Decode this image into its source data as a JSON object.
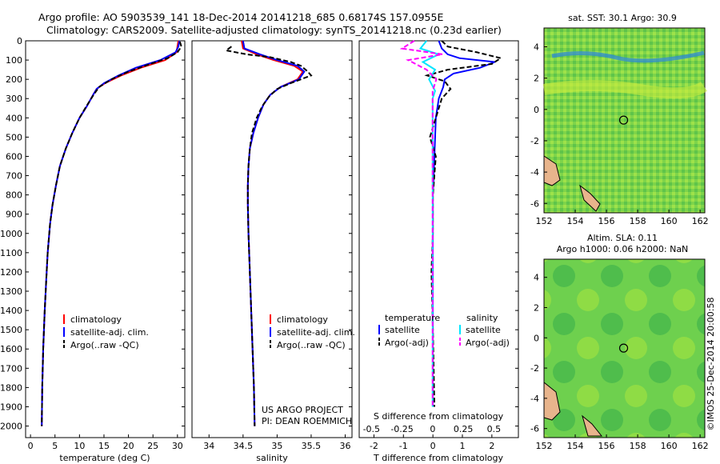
{
  "header": {
    "line1": "Argo profile: AO 5903539_141 18-Dec-2014 20141218_685 0.68174S 157.0955E",
    "line2": "Climatology: CARS2009. Satellite-adjusted climatology: synTS_20141218.nc (0.23d earlier)"
  },
  "colors": {
    "clim": "#ff0000",
    "sat": "#0000ff",
    "argo": "#000000",
    "sal_sat": "#00e5ff",
    "sal_argo": "#ff00ff"
  },
  "depth_axis": {
    "ticks": [
      0,
      100,
      200,
      300,
      400,
      500,
      600,
      700,
      800,
      900,
      1000,
      1100,
      1200,
      1300,
      1400,
      1500,
      1600,
      1700,
      1800,
      1900,
      2000
    ],
    "ylim": [
      0,
      2060
    ]
  },
  "credits": {
    "project": "US ARGO PROJECT",
    "pi": "PI: DEAN ROEMMICH",
    "imos": "©IMOS 25-Dec-2014 20:00:58"
  },
  "chart_data": [
    {
      "type": "line",
      "id": "temp",
      "xlabel": "temperature (deg C)",
      "xlim": [
        -1,
        31.5
      ],
      "ylim": [
        0,
        2060
      ],
      "xticks": [
        0,
        5,
        10,
        15,
        20,
        25,
        30
      ],
      "legend": [
        "climatology",
        "satellite-adj. clim.",
        "Argo(..raw -QC)"
      ],
      "series": [
        {
          "name": "climatology",
          "color_key": "clim",
          "dash": "",
          "points": [
            [
              30.2,
              0
            ],
            [
              30.0,
              30
            ],
            [
              29.8,
              60
            ],
            [
              27.5,
              100
            ],
            [
              22.5,
              140
            ],
            [
              18.5,
              180
            ],
            [
              15.2,
              220
            ],
            [
              13.5,
              250
            ],
            [
              12.8,
              280
            ],
            [
              11.5,
              340
            ],
            [
              10.0,
              400
            ],
            [
              8.5,
              480
            ],
            [
              7.2,
              560
            ],
            [
              6.0,
              650
            ],
            [
              5.2,
              750
            ],
            [
              4.5,
              850
            ],
            [
              4.0,
              950
            ],
            [
              3.5,
              1100
            ],
            [
              3.2,
              1250
            ],
            [
              2.9,
              1400
            ],
            [
              2.6,
              1600
            ],
            [
              2.4,
              1800
            ],
            [
              2.3,
              2000
            ]
          ]
        },
        {
          "name": "satellite-adj. clim.",
          "color_key": "sat",
          "dash": "",
          "points": [
            [
              30.4,
              0
            ],
            [
              30.2,
              30
            ],
            [
              29.6,
              60
            ],
            [
              26.5,
              100
            ],
            [
              21.5,
              140
            ],
            [
              18.0,
              180
            ],
            [
              15.0,
              220
            ],
            [
              13.5,
              250
            ],
            [
              12.8,
              280
            ],
            [
              11.5,
              340
            ],
            [
              10.0,
              400
            ],
            [
              8.5,
              480
            ],
            [
              7.2,
              560
            ],
            [
              6.0,
              650
            ],
            [
              5.2,
              750
            ],
            [
              4.5,
              850
            ],
            [
              4.0,
              950
            ],
            [
              3.5,
              1100
            ],
            [
              3.2,
              1250
            ],
            [
              2.9,
              1400
            ],
            [
              2.6,
              1600
            ],
            [
              2.4,
              1800
            ],
            [
              2.3,
              2000
            ]
          ]
        },
        {
          "name": "Argo(..raw -QC)",
          "color_key": "argo",
          "dash": "6,3",
          "points": [
            [
              30.5,
              5
            ],
            [
              30.8,
              30
            ],
            [
              30.0,
              60
            ],
            [
              28.0,
              90
            ],
            [
              24.5,
              120
            ],
            [
              20.0,
              160
            ],
            [
              16.5,
              200
            ],
            [
              14.0,
              240
            ],
            [
              12.9,
              280
            ],
            [
              11.4,
              340
            ],
            [
              10.0,
              400
            ],
            [
              8.5,
              480
            ],
            [
              7.2,
              560
            ],
            [
              6.0,
              650
            ],
            [
              5.2,
              750
            ],
            [
              4.5,
              850
            ],
            [
              4.0,
              950
            ],
            [
              3.5,
              1100
            ],
            [
              3.2,
              1250
            ],
            [
              2.9,
              1400
            ],
            [
              2.6,
              1600
            ],
            [
              2.4,
              1800
            ],
            [
              2.3,
              2000
            ]
          ]
        }
      ]
    },
    {
      "type": "line",
      "id": "sal",
      "xlabel": "salinity",
      "xlim": [
        33.75,
        36.1
      ],
      "ylim": [
        0,
        2060
      ],
      "xticks": [
        34,
        34.5,
        35,
        35.5,
        36
      ],
      "legend": [
        "climatology",
        "satellite-adj. clim.",
        "Argo(..raw -QC)"
      ],
      "series": [
        {
          "name": "climatology",
          "color_key": "clim",
          "dash": "",
          "points": [
            [
              34.48,
              0
            ],
            [
              34.5,
              40
            ],
            [
              34.7,
              70
            ],
            [
              34.95,
              100
            ],
            [
              35.25,
              130
            ],
            [
              35.38,
              160
            ],
            [
              35.3,
              200
            ],
            [
              35.05,
              240
            ],
            [
              34.9,
              280
            ],
            [
              34.8,
              330
            ],
            [
              34.72,
              400
            ],
            [
              34.65,
              480
            ],
            [
              34.6,
              560
            ],
            [
              34.58,
              650
            ],
            [
              34.57,
              750
            ],
            [
              34.57,
              850
            ],
            [
              34.58,
              1000
            ],
            [
              34.6,
              1200
            ],
            [
              34.62,
              1400
            ],
            [
              34.64,
              1600
            ],
            [
              34.66,
              1800
            ],
            [
              34.67,
              2000
            ]
          ]
        },
        {
          "name": "satellite-adj. clim.",
          "color_key": "sat",
          "dash": "",
          "points": [
            [
              34.5,
              0
            ],
            [
              34.52,
              40
            ],
            [
              34.75,
              70
            ],
            [
              35.0,
              100
            ],
            [
              35.3,
              130
            ],
            [
              35.4,
              160
            ],
            [
              35.32,
              200
            ],
            [
              35.05,
              240
            ],
            [
              34.9,
              280
            ],
            [
              34.8,
              330
            ],
            [
              34.72,
              400
            ],
            [
              34.65,
              480
            ],
            [
              34.6,
              560
            ],
            [
              34.58,
              650
            ],
            [
              34.57,
              750
            ],
            [
              34.57,
              850
            ],
            [
              34.58,
              1000
            ],
            [
              34.6,
              1200
            ],
            [
              34.62,
              1400
            ],
            [
              34.64,
              1600
            ],
            [
              34.66,
              1800
            ],
            [
              34.67,
              2000
            ]
          ]
        },
        {
          "name": "Argo(..raw -QC)",
          "color_key": "argo",
          "dash": "6,3",
          "points": [
            [
              34.33,
              30
            ],
            [
              34.25,
              50
            ],
            [
              34.55,
              70
            ],
            [
              34.9,
              85
            ],
            [
              35.2,
              110
            ],
            [
              35.35,
              130
            ],
            [
              35.45,
              160
            ],
            [
              35.5,
              180
            ],
            [
              35.2,
              220
            ],
            [
              35.0,
              250
            ],
            [
              34.88,
              290
            ],
            [
              34.78,
              340
            ],
            [
              34.7,
              400
            ],
            [
              34.63,
              480
            ],
            [
              34.6,
              560
            ],
            [
              34.58,
              650
            ],
            [
              34.57,
              750
            ],
            [
              34.57,
              850
            ],
            [
              34.58,
              1000
            ],
            [
              34.6,
              1200
            ],
            [
              34.62,
              1400
            ],
            [
              34.64,
              1600
            ],
            [
              34.66,
              1800
            ],
            [
              34.67,
              2000
            ]
          ]
        }
      ]
    },
    {
      "type": "line",
      "id": "diff",
      "xlabel": "T difference from climatology",
      "xlabel_top": "S difference from climatology",
      "xlim": [
        -2.5,
        2.9
      ],
      "xlim_top": [
        -0.6,
        0.7
      ],
      "ylim": [
        0,
        2060
      ],
      "xticks": [
        -2,
        -1,
        0,
        1,
        2
      ],
      "xticks_top": [
        -0.5,
        -0.25,
        0,
        0.25,
        0.5
      ],
      "legend_titles": [
        "temperature",
        "salinity"
      ],
      "legend": [
        "satellite",
        "Argo(-adj)",
        "satellite",
        "Argo(-adj)"
      ],
      "series": [
        {
          "name": "satellite",
          "quantity": "temperature",
          "color_key": "sat",
          "dash": "",
          "points": [
            [
              0.2,
              0
            ],
            [
              0.3,
              40
            ],
            [
              0.5,
              70
            ],
            [
              0.9,
              90
            ],
            [
              2.1,
              110
            ],
            [
              1.6,
              140
            ],
            [
              0.7,
              170
            ],
            [
              0.4,
              200
            ],
            [
              0.35,
              240
            ],
            [
              0.2,
              300
            ],
            [
              0.1,
              400
            ],
            [
              0.05,
              600
            ],
            [
              0,
              800
            ],
            [
              0,
              1000
            ],
            [
              0,
              1500
            ],
            [
              0,
              1900
            ]
          ]
        },
        {
          "name": "Argo(-adj)",
          "quantity": "temperature",
          "color_key": "argo",
          "dash": "6,3",
          "points": [
            [
              0.3,
              0
            ],
            [
              0.5,
              30
            ],
            [
              1.5,
              60
            ],
            [
              2.3,
              90
            ],
            [
              2.0,
              120
            ],
            [
              0.5,
              150
            ],
            [
              -0.2,
              180
            ],
            [
              0.4,
              210
            ],
            [
              0.6,
              250
            ],
            [
              0.3,
              300
            ],
            [
              0.1,
              400
            ],
            [
              -0.1,
              500
            ],
            [
              0.1,
              600
            ],
            [
              0,
              800
            ],
            [
              0,
              1000
            ],
            [
              -0.05,
              1200
            ],
            [
              0,
              1500
            ],
            [
              0.05,
              1900
            ]
          ]
        },
        {
          "name": "satellite",
          "quantity": "salinity",
          "color_key": "sal_sat",
          "dash": "",
          "points": [
            [
              -0.05,
              0
            ],
            [
              -0.1,
              40
            ],
            [
              0.05,
              70
            ],
            [
              -0.08,
              110
            ],
            [
              0.02,
              150
            ],
            [
              -0.03,
              200
            ],
            [
              0.02,
              260
            ],
            [
              0,
              300
            ],
            [
              0,
              400
            ],
            [
              0,
              800
            ],
            [
              0,
              1200
            ],
            [
              0,
              1600
            ],
            [
              0,
              1900
            ]
          ]
        },
        {
          "name": "Argo(-adj)",
          "quantity": "salinity",
          "color_key": "sal_argo",
          "dash": "6,3",
          "points": [
            [
              -0.15,
              0
            ],
            [
              -0.25,
              40
            ],
            [
              0.08,
              70
            ],
            [
              -0.2,
              100
            ],
            [
              -0.05,
              150
            ],
            [
              0.03,
              200
            ],
            [
              0,
              260
            ],
            [
              0,
              300
            ],
            [
              0,
              400
            ],
            [
              0,
              800
            ],
            [
              0,
              1200
            ],
            [
              0,
              1600
            ],
            [
              0,
              1900
            ]
          ]
        }
      ]
    },
    {
      "type": "heatmap",
      "id": "sst",
      "title": "sat. SST: 30.1  Argo: 30.9",
      "xlim": [
        152,
        162.3
      ],
      "ylim": [
        -6.6,
        5.2
      ],
      "xticks": [
        152,
        154,
        156,
        158,
        160,
        162
      ],
      "yticks": [
        -6,
        -4,
        -2,
        0,
        2,
        4
      ],
      "marker": [
        157.1,
        -0.68
      ]
    },
    {
      "type": "heatmap",
      "id": "sla",
      "title": "Altim. SLA: 0.11",
      "subtitle": "Argo h1000: 0.06  h2000: NaN",
      "xlim": [
        152,
        162.3
      ],
      "ylim": [
        -6.6,
        5.2
      ],
      "xticks": [
        152,
        154,
        156,
        158,
        160,
        162
      ],
      "yticks": [
        -6,
        -4,
        -2,
        0,
        2,
        4
      ],
      "marker": [
        157.1,
        -0.68
      ]
    }
  ]
}
